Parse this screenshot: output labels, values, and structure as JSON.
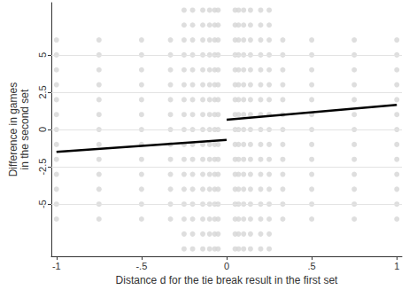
{
  "chart_data": {
    "type": "scatter",
    "x_label": "Distance d for the tie break result in the first set",
    "y_label": [
      "Difference in games",
      "in the second set"
    ],
    "xlim": [
      -1.03,
      1.03
    ],
    "ylim": [
      -8.5,
      8.5
    ],
    "xticks": [
      -1,
      {
        "value": -0.5,
        "label": "-.5"
      },
      0,
      {
        "value": 0.5,
        "label": ".5"
      },
      1
    ],
    "yticks": [
      -5,
      -2.5,
      0,
      2.5,
      5
    ],
    "grid": true,
    "series": [
      {
        "type": "scatter",
        "color": "#d6d6d6",
        "marker": "circle",
        "points": [
          [
            -1,
            -6
          ],
          [
            -1,
            -5
          ],
          [
            -1,
            -4
          ],
          [
            -1,
            -3
          ],
          [
            -1,
            -2
          ],
          [
            -1,
            -1
          ],
          [
            -1,
            0
          ],
          [
            -1,
            1
          ],
          [
            -1,
            2
          ],
          [
            -1,
            3
          ],
          [
            -1,
            4
          ],
          [
            -1,
            5
          ],
          [
            -1,
            6
          ],
          [
            -0.75,
            -6
          ],
          [
            -0.75,
            -5
          ],
          [
            -0.75,
            -4
          ],
          [
            -0.75,
            -3
          ],
          [
            -0.75,
            -2
          ],
          [
            -0.75,
            -1
          ],
          [
            -0.75,
            0
          ],
          [
            -0.75,
            1
          ],
          [
            -0.75,
            2
          ],
          [
            -0.75,
            3
          ],
          [
            -0.75,
            4
          ],
          [
            -0.75,
            5
          ],
          [
            -0.75,
            6
          ],
          [
            -0.5,
            -6
          ],
          [
            -0.5,
            -5
          ],
          [
            -0.5,
            -4
          ],
          [
            -0.5,
            -3
          ],
          [
            -0.5,
            -2
          ],
          [
            -0.5,
            -1
          ],
          [
            -0.5,
            0
          ],
          [
            -0.5,
            1
          ],
          [
            -0.5,
            2
          ],
          [
            -0.5,
            3
          ],
          [
            -0.5,
            4
          ],
          [
            -0.5,
            5
          ],
          [
            -0.5,
            6
          ],
          [
            -0.33,
            -6
          ],
          [
            -0.33,
            -5
          ],
          [
            -0.33,
            -4
          ],
          [
            -0.33,
            -3
          ],
          [
            -0.33,
            -2
          ],
          [
            -0.33,
            -1
          ],
          [
            -0.33,
            0
          ],
          [
            -0.33,
            1
          ],
          [
            -0.33,
            2
          ],
          [
            -0.33,
            3
          ],
          [
            -0.33,
            4
          ],
          [
            -0.33,
            5
          ],
          [
            -0.33,
            6
          ],
          [
            -0.25,
            -8
          ],
          [
            -0.25,
            -7
          ],
          [
            -0.25,
            -6
          ],
          [
            -0.25,
            -5
          ],
          [
            -0.25,
            -4
          ],
          [
            -0.25,
            -3
          ],
          [
            -0.25,
            -2
          ],
          [
            -0.25,
            -1
          ],
          [
            -0.25,
            0
          ],
          [
            -0.25,
            1
          ],
          [
            -0.25,
            2
          ],
          [
            -0.25,
            3
          ],
          [
            -0.25,
            4
          ],
          [
            -0.25,
            5
          ],
          [
            -0.25,
            6
          ],
          [
            -0.25,
            7
          ],
          [
            -0.25,
            8
          ],
          [
            -0.2,
            -8
          ],
          [
            -0.2,
            -7
          ],
          [
            -0.2,
            -6
          ],
          [
            -0.2,
            -5
          ],
          [
            -0.2,
            -4
          ],
          [
            -0.2,
            -3
          ],
          [
            -0.2,
            -2
          ],
          [
            -0.2,
            -1
          ],
          [
            -0.2,
            0
          ],
          [
            -0.2,
            1
          ],
          [
            -0.2,
            2
          ],
          [
            -0.2,
            3
          ],
          [
            -0.2,
            4
          ],
          [
            -0.2,
            5
          ],
          [
            -0.2,
            6
          ],
          [
            -0.2,
            7
          ],
          [
            -0.2,
            8
          ],
          [
            -0.14,
            -8
          ],
          [
            -0.14,
            -7
          ],
          [
            -0.14,
            -6
          ],
          [
            -0.14,
            -5
          ],
          [
            -0.14,
            -4
          ],
          [
            -0.14,
            -3
          ],
          [
            -0.14,
            -2
          ],
          [
            -0.14,
            -1
          ],
          [
            -0.14,
            0
          ],
          [
            -0.14,
            1
          ],
          [
            -0.14,
            2
          ],
          [
            -0.14,
            3
          ],
          [
            -0.14,
            4
          ],
          [
            -0.14,
            5
          ],
          [
            -0.14,
            6
          ],
          [
            -0.14,
            7
          ],
          [
            -0.14,
            8
          ],
          [
            -0.1,
            -8
          ],
          [
            -0.1,
            -7
          ],
          [
            -0.1,
            -6
          ],
          [
            -0.1,
            -5
          ],
          [
            -0.1,
            -4
          ],
          [
            -0.1,
            -3
          ],
          [
            -0.1,
            -2
          ],
          [
            -0.1,
            -1
          ],
          [
            -0.1,
            0
          ],
          [
            -0.1,
            1
          ],
          [
            -0.1,
            2
          ],
          [
            -0.1,
            3
          ],
          [
            -0.1,
            4
          ],
          [
            -0.1,
            5
          ],
          [
            -0.1,
            6
          ],
          [
            -0.1,
            7
          ],
          [
            -0.1,
            8
          ],
          [
            -0.07,
            -8
          ],
          [
            -0.07,
            -7
          ],
          [
            -0.07,
            -6
          ],
          [
            -0.07,
            -5
          ],
          [
            -0.07,
            -4
          ],
          [
            -0.07,
            -3
          ],
          [
            -0.07,
            -2
          ],
          [
            -0.07,
            -1
          ],
          [
            -0.07,
            0
          ],
          [
            -0.07,
            1
          ],
          [
            -0.07,
            2
          ],
          [
            -0.07,
            3
          ],
          [
            -0.07,
            4
          ],
          [
            -0.07,
            5
          ],
          [
            -0.07,
            6
          ],
          [
            -0.07,
            7
          ],
          [
            -0.07,
            8
          ],
          [
            -0.05,
            -8
          ],
          [
            -0.05,
            -7
          ],
          [
            -0.05,
            -6
          ],
          [
            -0.05,
            -5
          ],
          [
            -0.05,
            -4
          ],
          [
            -0.05,
            -3
          ],
          [
            -0.05,
            -2
          ],
          [
            -0.05,
            -1
          ],
          [
            -0.05,
            0
          ],
          [
            -0.05,
            1
          ],
          [
            -0.05,
            2
          ],
          [
            -0.05,
            3
          ],
          [
            -0.05,
            4
          ],
          [
            -0.05,
            5
          ],
          [
            -0.05,
            6
          ],
          [
            -0.05,
            7
          ],
          [
            -0.05,
            8
          ],
          [
            0.05,
            -8
          ],
          [
            0.05,
            -7
          ],
          [
            0.05,
            -6
          ],
          [
            0.05,
            -5
          ],
          [
            0.05,
            -4
          ],
          [
            0.05,
            -3
          ],
          [
            0.05,
            -2
          ],
          [
            0.05,
            -1
          ],
          [
            0.05,
            0
          ],
          [
            0.05,
            1
          ],
          [
            0.05,
            2
          ],
          [
            0.05,
            3
          ],
          [
            0.05,
            4
          ],
          [
            0.05,
            5
          ],
          [
            0.05,
            6
          ],
          [
            0.05,
            7
          ],
          [
            0.05,
            8
          ],
          [
            0.07,
            -8
          ],
          [
            0.07,
            -7
          ],
          [
            0.07,
            -6
          ],
          [
            0.07,
            -5
          ],
          [
            0.07,
            -4
          ],
          [
            0.07,
            -3
          ],
          [
            0.07,
            -2
          ],
          [
            0.07,
            -1
          ],
          [
            0.07,
            0
          ],
          [
            0.07,
            1
          ],
          [
            0.07,
            2
          ],
          [
            0.07,
            3
          ],
          [
            0.07,
            4
          ],
          [
            0.07,
            5
          ],
          [
            0.07,
            6
          ],
          [
            0.07,
            7
          ],
          [
            0.07,
            8
          ],
          [
            0.1,
            -8
          ],
          [
            0.1,
            -7
          ],
          [
            0.1,
            -6
          ],
          [
            0.1,
            -5
          ],
          [
            0.1,
            -4
          ],
          [
            0.1,
            -3
          ],
          [
            0.1,
            -2
          ],
          [
            0.1,
            -1
          ],
          [
            0.1,
            0
          ],
          [
            0.1,
            1
          ],
          [
            0.1,
            2
          ],
          [
            0.1,
            3
          ],
          [
            0.1,
            4
          ],
          [
            0.1,
            5
          ],
          [
            0.1,
            6
          ],
          [
            0.1,
            7
          ],
          [
            0.1,
            8
          ],
          [
            0.14,
            -8
          ],
          [
            0.14,
            -7
          ],
          [
            0.14,
            -6
          ],
          [
            0.14,
            -5
          ],
          [
            0.14,
            -4
          ],
          [
            0.14,
            -3
          ],
          [
            0.14,
            -2
          ],
          [
            0.14,
            -1
          ],
          [
            0.14,
            0
          ],
          [
            0.14,
            1
          ],
          [
            0.14,
            2
          ],
          [
            0.14,
            3
          ],
          [
            0.14,
            4
          ],
          [
            0.14,
            5
          ],
          [
            0.14,
            6
          ],
          [
            0.14,
            7
          ],
          [
            0.14,
            8
          ],
          [
            0.2,
            -8
          ],
          [
            0.2,
            -7
          ],
          [
            0.2,
            -6
          ],
          [
            0.2,
            -5
          ],
          [
            0.2,
            -4
          ],
          [
            0.2,
            -3
          ],
          [
            0.2,
            -2
          ],
          [
            0.2,
            -1
          ],
          [
            0.2,
            0
          ],
          [
            0.2,
            1
          ],
          [
            0.2,
            2
          ],
          [
            0.2,
            3
          ],
          [
            0.2,
            4
          ],
          [
            0.2,
            5
          ],
          [
            0.2,
            6
          ],
          [
            0.2,
            7
          ],
          [
            0.2,
            8
          ],
          [
            0.25,
            -8
          ],
          [
            0.25,
            -7
          ],
          [
            0.25,
            -6
          ],
          [
            0.25,
            -5
          ],
          [
            0.25,
            -4
          ],
          [
            0.25,
            -3
          ],
          [
            0.25,
            -2
          ],
          [
            0.25,
            -1
          ],
          [
            0.25,
            0
          ],
          [
            0.25,
            1
          ],
          [
            0.25,
            2
          ],
          [
            0.25,
            3
          ],
          [
            0.25,
            4
          ],
          [
            0.25,
            5
          ],
          [
            0.25,
            6
          ],
          [
            0.25,
            7
          ],
          [
            0.25,
            8
          ],
          [
            0.33,
            -6
          ],
          [
            0.33,
            -5
          ],
          [
            0.33,
            -4
          ],
          [
            0.33,
            -3
          ],
          [
            0.33,
            -2
          ],
          [
            0.33,
            -1
          ],
          [
            0.33,
            0
          ],
          [
            0.33,
            1
          ],
          [
            0.33,
            2
          ],
          [
            0.33,
            3
          ],
          [
            0.33,
            4
          ],
          [
            0.33,
            5
          ],
          [
            0.33,
            6
          ],
          [
            0.5,
            -6
          ],
          [
            0.5,
            -5
          ],
          [
            0.5,
            -4
          ],
          [
            0.5,
            -3
          ],
          [
            0.5,
            -2
          ],
          [
            0.5,
            -1
          ],
          [
            0.5,
            0
          ],
          [
            0.5,
            1
          ],
          [
            0.5,
            2
          ],
          [
            0.5,
            3
          ],
          [
            0.5,
            4
          ],
          [
            0.5,
            5
          ],
          [
            0.5,
            6
          ],
          [
            0.75,
            -6
          ],
          [
            0.75,
            -5
          ],
          [
            0.75,
            -4
          ],
          [
            0.75,
            -3
          ],
          [
            0.75,
            -2
          ],
          [
            0.75,
            -1
          ],
          [
            0.75,
            0
          ],
          [
            0.75,
            1
          ],
          [
            0.75,
            2
          ],
          [
            0.75,
            3
          ],
          [
            0.75,
            4
          ],
          [
            0.75,
            5
          ],
          [
            0.75,
            6
          ],
          [
            1,
            -6
          ],
          [
            1,
            -5
          ],
          [
            1,
            -4
          ],
          [
            1,
            -3
          ],
          [
            1,
            -2
          ],
          [
            1,
            -1
          ],
          [
            1,
            0
          ],
          [
            1,
            1
          ],
          [
            1,
            2
          ],
          [
            1,
            3
          ],
          [
            1,
            4
          ],
          [
            1,
            5
          ],
          [
            1,
            6
          ]
        ]
      },
      {
        "type": "line",
        "color": "#000000",
        "line_style": "solid",
        "x": [
          -1,
          0
        ],
        "values": [
          -1.5,
          -0.7
        ]
      },
      {
        "type": "line",
        "color": "#000000",
        "line_style": "solid",
        "x": [
          0,
          1
        ],
        "values": [
          0.65,
          1.65
        ]
      }
    ]
  }
}
